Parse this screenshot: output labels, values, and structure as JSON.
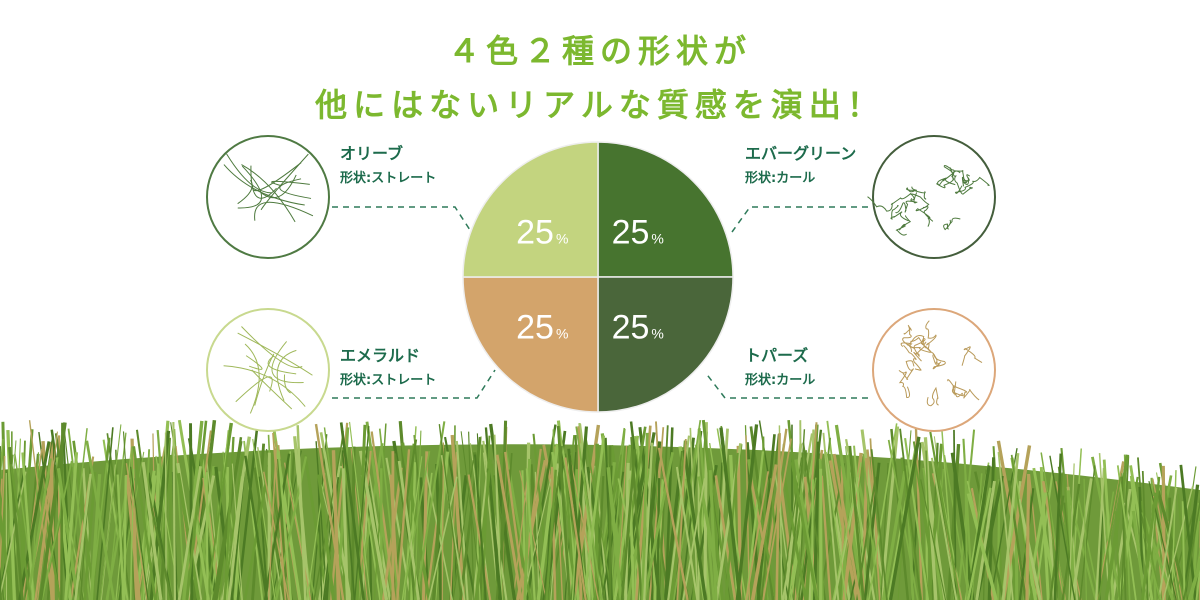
{
  "headline": {
    "line1": "４色２種の形状が",
    "line2": "他にはないリアルな質感を演出！"
  },
  "chart_data": {
    "type": "pie",
    "slices": [
      {
        "name": "オリーブ",
        "shape": "形状:ストレート",
        "value": 25,
        "label": "25",
        "unit": "%",
        "color": "#47742f",
        "sample_border": "#4f7a43"
      },
      {
        "name": "エバーグリーン",
        "shape": "形状:カール",
        "value": 25,
        "label": "25",
        "unit": "%",
        "color": "#4a663a",
        "sample_border": "#445e3c"
      },
      {
        "name": "トパーズ",
        "shape": "形状:カール",
        "value": 25,
        "label": "25",
        "unit": "%",
        "color": "#d3a46b",
        "sample_border": "#dca77a"
      },
      {
        "name": "エメラルド",
        "shape": "形状:ストレート",
        "value": 25,
        "label": "25",
        "unit": "%",
        "color": "#c3d47f",
        "sample_border": "#c8d98f"
      }
    ]
  },
  "colors": {
    "headline": "#7cb82f",
    "label": "#1d6b4c",
    "grass": "#6f9a3a"
  }
}
